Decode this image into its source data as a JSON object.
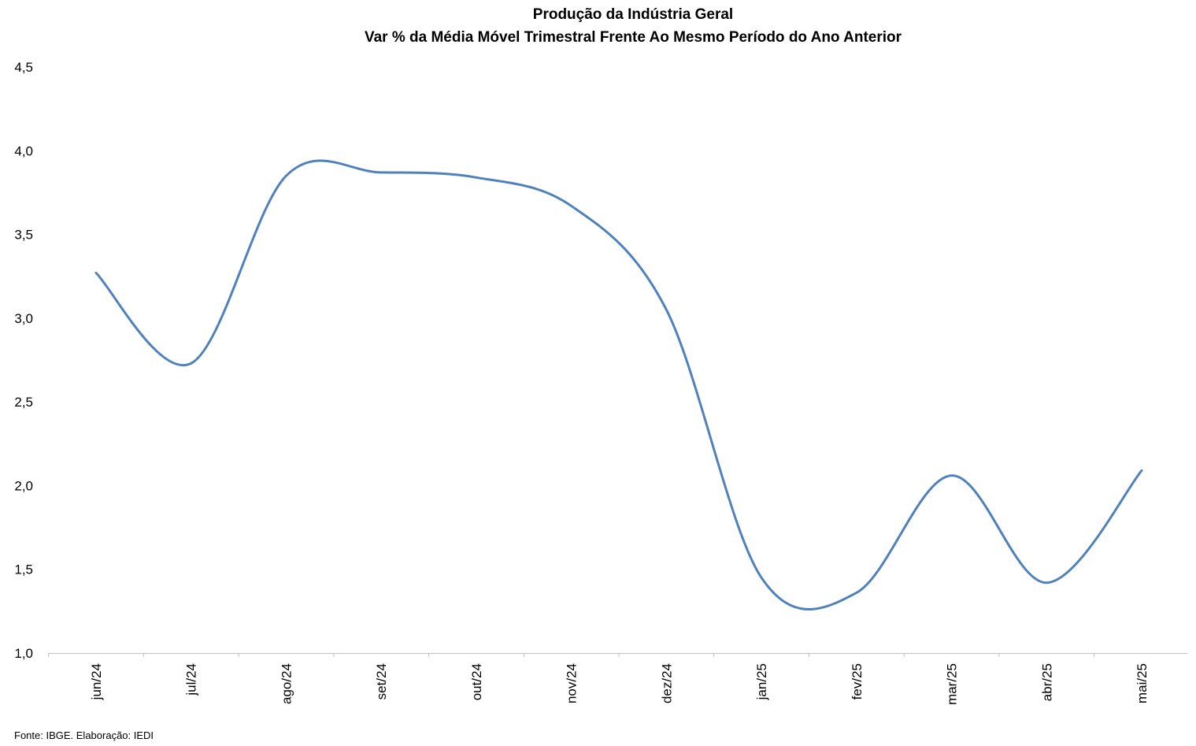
{
  "chart_data": {
    "type": "line",
    "title": "Produção da Indústria Geral",
    "subtitle": "Var % da Média Móvel Trimestral Frente Ao Mesmo Período do Ano Anterior",
    "categories": [
      "jun/24",
      "jul/24",
      "ago/24",
      "set/24",
      "out/24",
      "nov/24",
      "dez/24",
      "jan/25",
      "fev/25",
      "mar/25",
      "abr/25",
      "mai/25"
    ],
    "series": [
      {
        "values": [
          3.27,
          2.73,
          3.85,
          3.87,
          3.84,
          3.67,
          3.05,
          1.45,
          1.36,
          2.06,
          1.42,
          2.09
        ]
      }
    ],
    "yticks": [
      "1,0",
      "1,5",
      "2,0",
      "2,5",
      "3,0",
      "3,5",
      "4,0",
      "4,5"
    ],
    "ylim": [
      1.0,
      4.5
    ],
    "line_color": "#4f81bd",
    "axis_color": "#bfbfbf",
    "grid": false,
    "legend": "none",
    "source": "Fonte: IBGE. Elaboração: IEDI"
  }
}
